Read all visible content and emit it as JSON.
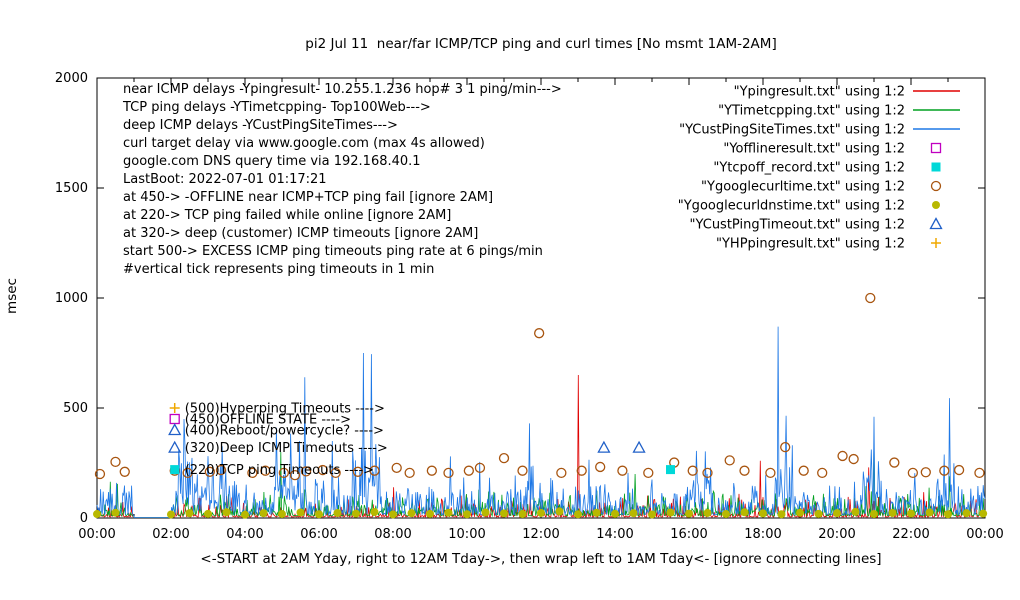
{
  "chart_data": {
    "type": "line",
    "title": "pi2 Jul 11  near/far ICMP/TCP ping and curl times [No msmt 1AM-2AM]",
    "ylabel": "msec",
    "xlabel": "<-START at 2AM Yday, right to 12AM Tday->, then wrap left to 1AM Tday<- [ignore connecting lines]",
    "ylim": [
      0,
      2000
    ],
    "xlim_hours": [
      0,
      24
    ],
    "grid": false,
    "legend_position": "top-right",
    "y_ticks": [
      "0",
      "500",
      "1000",
      "1500",
      "2000"
    ],
    "x_ticks": [
      "00:00",
      "02:00",
      "04:00",
      "06:00",
      "08:00",
      "10:00",
      "12:00",
      "14:00",
      "16:00",
      "18:00",
      "20:00",
      "22:00",
      "00:00"
    ],
    "info_lines": [
      "near ICMP delays -Ypingresult- 10.255.1.236 hop# 3 1 ping/min--->",
      "TCP ping delays -YTimetcpping- Top100Web--->",
      "deep ICMP delays -YCustPingSiteTimes--->",
      "curl target delay via www.google.com (max 4s allowed)",
      "google.com DNS query time via 192.168.40.1",
      "LastBoot: 2022-07-01 01:17:21",
      "at 450-> -OFFLINE near ICMP+TCP ping fail [ignore 2AM]",
      "at 220-> TCP ping failed while online [ignore 2AM]",
      "at 320-> deep (customer) ICMP timeouts [ignore 2AM]",
      "start 500-> EXCESS ICMP ping timeouts ping rate at 6 pings/min",
      "        #vertical tick represents ping timeouts in 1 min"
    ],
    "annotations": [
      {
        "marker": "plus",
        "color": "#f0a800",
        "x": 2.1,
        "y": 500,
        "label": "(500)Hyperping Timeouts ---->"
      },
      {
        "marker": "open-square",
        "color": "#c000c0",
        "x": 2.1,
        "y": 450,
        "label": "(450)OFFLINE STATE ---->"
      },
      {
        "marker": "open-triangle",
        "color": "#2060c8",
        "x": 2.1,
        "y": 400,
        "label": "(400)Reboot/powercycle? ---->"
      },
      {
        "marker": "open-triangle",
        "color": "#2060c8",
        "x": 2.1,
        "y": 320,
        "label": "(320)Deep ICMP Timeouts ---->"
      },
      {
        "marker": "filled-square",
        "color": "#00d8d8",
        "x": 2.1,
        "y": 220,
        "label": "(220)TCP ping Timeouts ---->"
      }
    ],
    "legend": [
      {
        "label": "\"Ypingresult.txt\" using 1:2",
        "type": "line",
        "color": "#e00000"
      },
      {
        "label": "\"YTimetcpping.txt\" using 1:2",
        "type": "line",
        "color": "#00a020"
      },
      {
        "label": "\"YCustPingSiteTimes.txt\" using 1:2",
        "type": "line",
        "color": "#1e78e6"
      },
      {
        "label": "\"Yofflineresult.txt\" using 1:2",
        "type": "open-square",
        "color": "#c000c0"
      },
      {
        "label": "\"Ytcpoff_record.txt\" using 1:2",
        "type": "filled-square",
        "color": "#00d8d8"
      },
      {
        "label": "\"Ygooglecurltime.txt\" using 1:2",
        "type": "open-circle",
        "color": "#a85510"
      },
      {
        "label": "\"Ygooglecurldnstime.txt\" using 1:2",
        "type": "filled-circle",
        "color": "#b8b800"
      },
      {
        "label": "\"YCustPingTimeout.txt\" using 1:2",
        "type": "open-triangle",
        "color": "#2060c8"
      },
      {
        "label": "\"YHPpingresult.txt\" using 1:2",
        "type": "plus",
        "color": "#f0a800"
      }
    ],
    "series": [
      {
        "name": "Ypingresult",
        "color": "#e00000",
        "seed": 11,
        "base": 5,
        "amp": 120,
        "power": 4,
        "spikes": [
          [
            13.0,
            650
          ],
          [
            8.02,
            140
          ],
          [
            17.93,
            260
          ],
          [
            20.85,
            230
          ]
        ]
      },
      {
        "name": "YTimetcpping",
        "color": "#00a020",
        "seed": 22,
        "base": 10,
        "amp": 140,
        "power": 3,
        "spikes": [
          [
            0.35,
            165
          ],
          [
            0.55,
            155
          ],
          [
            4.97,
            300
          ],
          [
            14.55,
            200
          ],
          [
            21.0,
            345
          ],
          [
            23.05,
            190
          ]
        ]
      },
      {
        "name": "YCustPingSiteTimes",
        "color": "#1e78e6",
        "seed": 33,
        "base": 15,
        "amp": 200,
        "power": 2.2,
        "clusters": [
          [
            2.2,
            3.5,
            260
          ],
          [
            4.8,
            5.5,
            220
          ],
          [
            6.9,
            7.7,
            260
          ],
          [
            11.5,
            12.0,
            160
          ],
          [
            16.0,
            16.6,
            150
          ],
          [
            18.3,
            18.8,
            200
          ],
          [
            20.7,
            21.2,
            180
          ],
          [
            22.7,
            23.2,
            200
          ]
        ],
        "spikes": [
          [
            2.35,
            450
          ],
          [
            5.62,
            640
          ],
          [
            6.35,
            350
          ],
          [
            7.19,
            750
          ],
          [
            7.41,
            745
          ],
          [
            9.55,
            280
          ],
          [
            10.35,
            255
          ],
          [
            11.7,
            430
          ],
          [
            13.3,
            265
          ],
          [
            16.2,
            305
          ],
          [
            18.4,
            870
          ],
          [
            18.62,
            465
          ],
          [
            21.0,
            460
          ],
          [
            23.05,
            545
          ]
        ]
      }
    ],
    "points": [
      {
        "name": "Ygooglecurltime",
        "type": "open-circle",
        "color": "#a85510",
        "data": [
          [
            0.08,
            200
          ],
          [
            0.5,
            255
          ],
          [
            0.75,
            210
          ],
          [
            2.1,
            215
          ],
          [
            2.45,
            205
          ],
          [
            3.05,
            210
          ],
          [
            3.35,
            218
          ],
          [
            4.2,
            205
          ],
          [
            4.55,
            215
          ],
          [
            5.05,
            205
          ],
          [
            5.35,
            195
          ],
          [
            5.65,
            212
          ],
          [
            6.1,
            218
          ],
          [
            6.45,
            205
          ],
          [
            7.05,
            210
          ],
          [
            7.5,
            215
          ],
          [
            8.1,
            228
          ],
          [
            8.45,
            205
          ],
          [
            9.05,
            215
          ],
          [
            9.5,
            205
          ],
          [
            10.05,
            215
          ],
          [
            10.35,
            228
          ],
          [
            11.0,
            272
          ],
          [
            11.5,
            215
          ],
          [
            11.95,
            840
          ],
          [
            12.55,
            205
          ],
          [
            13.1,
            215
          ],
          [
            13.6,
            232
          ],
          [
            14.2,
            215
          ],
          [
            14.9,
            205
          ],
          [
            15.6,
            252
          ],
          [
            16.1,
            215
          ],
          [
            16.5,
            205
          ],
          [
            17.1,
            262
          ],
          [
            17.5,
            215
          ],
          [
            18.2,
            205
          ],
          [
            18.6,
            322
          ],
          [
            19.1,
            215
          ],
          [
            19.6,
            205
          ],
          [
            20.15,
            282
          ],
          [
            20.45,
            268
          ],
          [
            20.9,
            1000
          ],
          [
            21.55,
            252
          ],
          [
            22.05,
            205
          ],
          [
            22.4,
            208
          ],
          [
            22.9,
            215
          ],
          [
            23.3,
            218
          ],
          [
            23.85,
            205
          ]
        ]
      },
      {
        "name": "Ygooglecurldnstime",
        "type": "filled-circle",
        "color": "#b8b800",
        "data": [
          [
            0.0,
            18
          ],
          [
            0.5,
            24
          ],
          [
            2.0,
            16
          ],
          [
            2.5,
            22
          ],
          [
            3.0,
            19
          ],
          [
            3.5,
            26
          ],
          [
            4.0,
            15
          ],
          [
            4.5,
            22
          ],
          [
            5.0,
            18
          ],
          [
            5.5,
            25
          ],
          [
            6.0,
            17
          ],
          [
            6.5,
            23
          ],
          [
            7.0,
            20
          ],
          [
            7.5,
            27
          ],
          [
            8.0,
            16
          ],
          [
            8.5,
            22
          ],
          [
            9.0,
            19
          ],
          [
            9.5,
            24
          ],
          [
            10.0,
            17
          ],
          [
            10.5,
            25
          ],
          [
            11.0,
            21
          ],
          [
            11.5,
            18
          ],
          [
            12.0,
            23
          ],
          [
            12.5,
            30
          ],
          [
            13.0,
            17
          ],
          [
            13.5,
            24
          ],
          [
            14.0,
            19
          ],
          [
            14.5,
            22
          ],
          [
            15.0,
            16
          ],
          [
            15.5,
            25
          ],
          [
            16.0,
            20
          ],
          [
            16.5,
            23
          ],
          [
            17.0,
            18
          ],
          [
            17.5,
            26
          ],
          [
            18.0,
            21
          ],
          [
            18.5,
            17
          ],
          [
            19.0,
            24
          ],
          [
            19.5,
            19
          ],
          [
            20.0,
            22
          ],
          [
            20.5,
            28
          ],
          [
            21.0,
            18
          ],
          [
            21.5,
            23
          ],
          [
            22.0,
            20
          ],
          [
            22.5,
            25
          ],
          [
            23.0,
            17
          ],
          [
            23.5,
            22
          ],
          [
            23.95,
            20
          ]
        ]
      },
      {
        "name": "YCustPingTimeout",
        "type": "open-triangle",
        "color": "#2060c8",
        "data": [
          [
            13.7,
            320
          ],
          [
            14.65,
            320
          ]
        ]
      },
      {
        "name": "Ytcpoff_record",
        "type": "filled-square",
        "color": "#00d8d8",
        "data": [
          [
            15.5,
            220
          ]
        ]
      },
      {
        "name": "Yofflineresult",
        "type": "open-square",
        "color": "#c000c0",
        "data": []
      },
      {
        "name": "YHPpingresult",
        "type": "plus",
        "color": "#f0a800",
        "data": []
      }
    ]
  }
}
